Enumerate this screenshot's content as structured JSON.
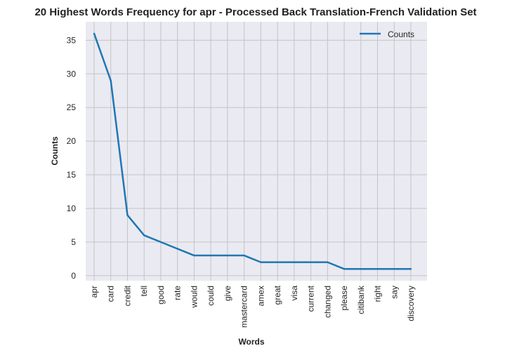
{
  "chart_data": {
    "type": "line",
    "title": "20 Highest Words Frequency for apr - Processed Back Translation-French Validation Set",
    "xlabel": "Words",
    "ylabel": "Counts",
    "categories": [
      "apr",
      "card",
      "credit",
      "tell",
      "good",
      "rate",
      "would",
      "could",
      "give",
      "mastercard",
      "amex",
      "great",
      "visa",
      "current",
      "changed",
      "please",
      "citibank",
      "right",
      "say",
      "discovery"
    ],
    "series": [
      {
        "name": "Counts",
        "values": [
          36,
          29,
          9,
          6,
          5,
          4,
          3,
          3,
          3,
          3,
          2,
          2,
          2,
          2,
          2,
          1,
          1,
          1,
          1,
          1
        ],
        "color": "#1f77b4"
      }
    ],
    "yticks": [
      0,
      5,
      10,
      15,
      20,
      25,
      30,
      35
    ],
    "ylim": [
      -0.75,
      37.75
    ],
    "grid": true,
    "legend": "top-right"
  },
  "colors": {
    "plot_background": "#eaeaf2",
    "grid": "#c4c4c4"
  }
}
